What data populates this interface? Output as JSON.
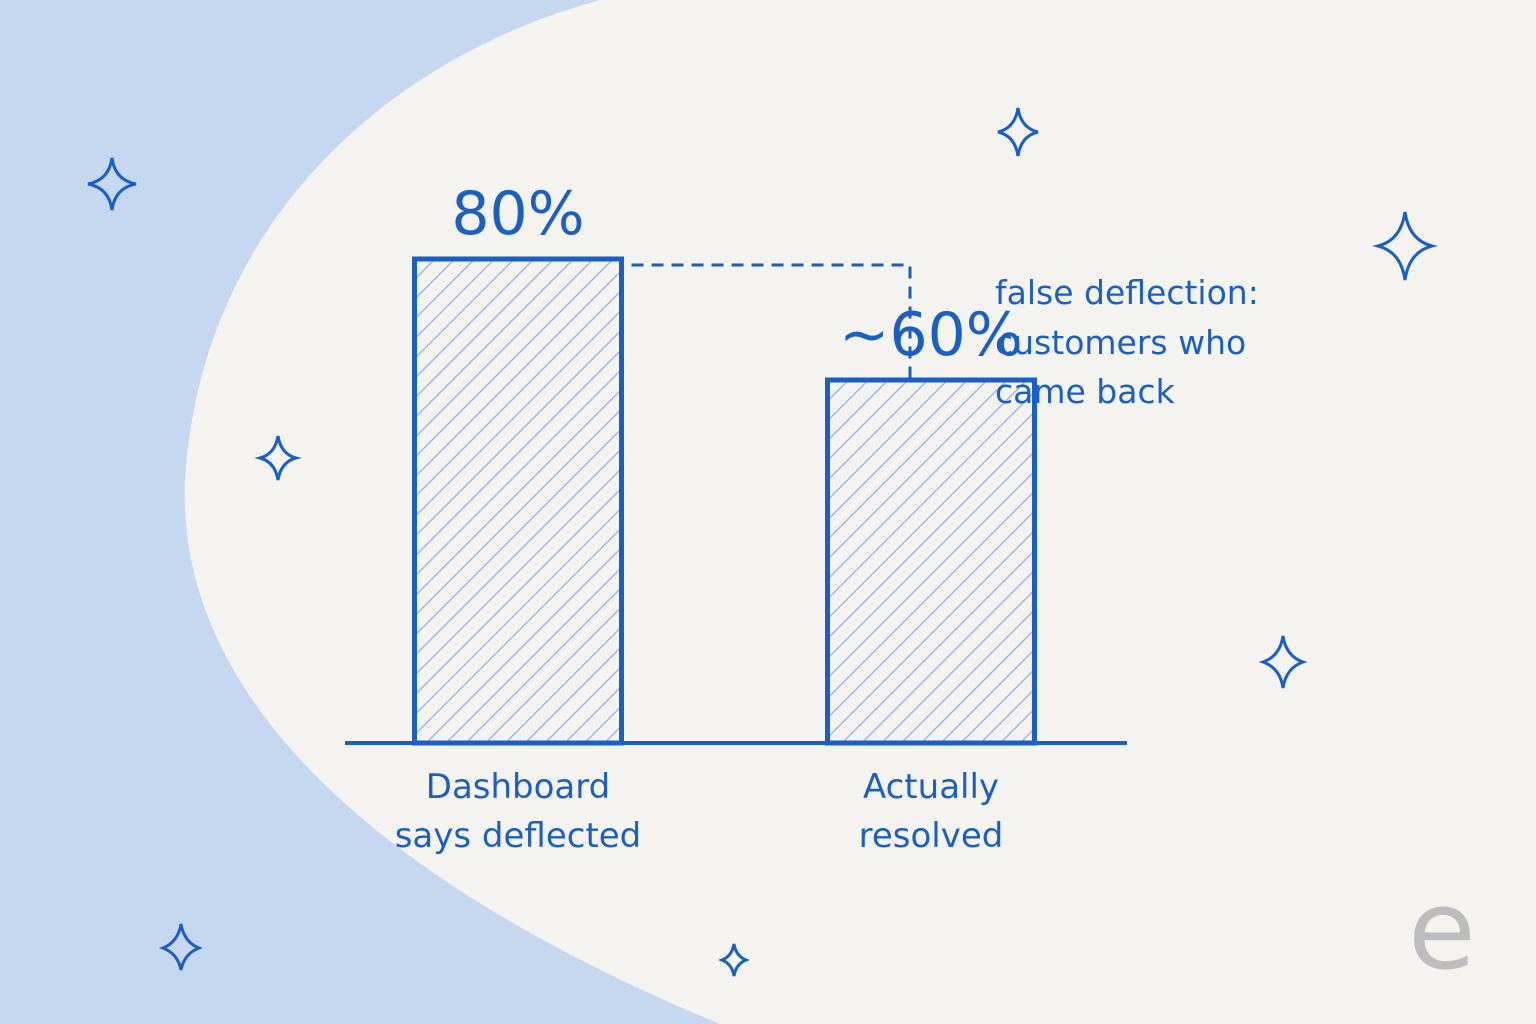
{
  "chart_data": {
    "type": "bar",
    "categories": [
      "Dashboard says deflected",
      "Actually resolved"
    ],
    "values": [
      80,
      60
    ],
    "value_labels": [
      "80%",
      "~60%"
    ],
    "color": "#1a5fc4",
    "annotation": "false deflection: customers who came back"
  },
  "logo": "e"
}
